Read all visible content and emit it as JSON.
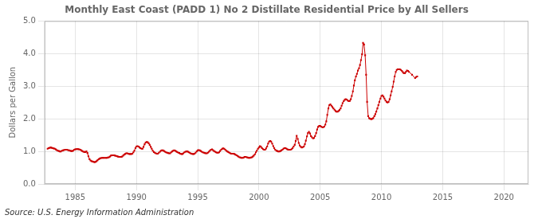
{
  "chart_data": {
    "type": "line",
    "title": "Monthly East Coast (PADD 1) No 2 Distillate Residential Price by All Sellers",
    "ylabel": "Dollars per Gallon",
    "annotations": [
      "Source: U.S. Energy Information Administration"
    ],
    "color": "#cc0000",
    "marker": "square",
    "line_style": "solid",
    "grid": true,
    "xlim": [
      1982.5,
      2022
    ],
    "ylim": [
      0.0,
      5.0
    ],
    "xticks": [
      1985,
      1990,
      1995,
      2000,
      2005,
      2010,
      2015,
      2020
    ],
    "yticks": [
      {
        "value": 0.0,
        "label": "0.0"
      },
      {
        "value": 1.0,
        "label": "1.0"
      },
      {
        "value": 2.0,
        "label": "2.0"
      },
      {
        "value": 3.0,
        "label": "3.0"
      },
      {
        "value": 4.0,
        "label": "4.0"
      },
      {
        "value": 5.0,
        "label": "5.0"
      }
    ],
    "x": [
      1982.75,
      1982.83,
      1982.92,
      1983.0,
      1983.08,
      1983.17,
      1983.25,
      1983.33,
      1983.42,
      1983.5,
      1983.58,
      1983.67,
      1983.75,
      1983.83,
      1983.92,
      1984.0,
      1984.08,
      1984.17,
      1984.25,
      1984.33,
      1984.42,
      1984.5,
      1984.58,
      1984.67,
      1984.75,
      1984.83,
      1984.92,
      1985.0,
      1985.08,
      1985.17,
      1985.25,
      1985.33,
      1985.42,
      1985.5,
      1985.58,
      1985.67,
      1985.75,
      1985.83,
      1985.92,
      1986.0,
      1986.08,
      1986.17,
      1986.25,
      1986.33,
      1986.42,
      1986.5,
      1986.58,
      1986.67,
      1986.75,
      1986.83,
      1986.92,
      1987.0,
      1987.08,
      1987.17,
      1987.25,
      1987.33,
      1987.42,
      1987.5,
      1987.58,
      1987.67,
      1987.75,
      1987.83,
      1987.92,
      1988.0,
      1988.08,
      1988.17,
      1988.25,
      1988.33,
      1988.42,
      1988.5,
      1988.58,
      1988.67,
      1988.75,
      1988.83,
      1988.92,
      1989.0,
      1989.08,
      1989.17,
      1989.25,
      1989.33,
      1989.42,
      1989.5,
      1989.58,
      1989.67,
      1989.75,
      1989.83,
      1989.92,
      1990.0,
      1990.08,
      1990.17,
      1990.25,
      1990.33,
      1990.42,
      1990.5,
      1990.58,
      1990.67,
      1990.75,
      1990.83,
      1990.92,
      1991.0,
      1991.08,
      1991.17,
      1991.25,
      1991.33,
      1991.42,
      1991.5,
      1991.58,
      1991.67,
      1991.75,
      1991.83,
      1991.92,
      1992.0,
      1992.08,
      1992.17,
      1992.25,
      1992.33,
      1992.42,
      1992.5,
      1992.58,
      1992.67,
      1992.75,
      1992.83,
      1992.92,
      1993.0,
      1993.08,
      1993.17,
      1993.25,
      1993.33,
      1993.42,
      1993.5,
      1993.58,
      1993.67,
      1993.75,
      1993.83,
      1993.92,
      1994.0,
      1994.08,
      1994.17,
      1994.25,
      1994.33,
      1994.42,
      1994.5,
      1994.58,
      1994.67,
      1994.75,
      1994.83,
      1994.92,
      1995.0,
      1995.08,
      1995.17,
      1995.25,
      1995.33,
      1995.42,
      1995.5,
      1995.58,
      1995.67,
      1995.75,
      1995.83,
      1995.92,
      1996.0,
      1996.08,
      1996.17,
      1996.25,
      1996.33,
      1996.42,
      1996.5,
      1996.58,
      1996.67,
      1996.75,
      1996.83,
      1996.92,
      1997.0,
      1997.08,
      1997.17,
      1997.25,
      1997.33,
      1997.42,
      1997.5,
      1997.58,
      1997.67,
      1997.75,
      1997.83,
      1997.92,
      1998.0,
      1998.08,
      1998.17,
      1998.25,
      1998.33,
      1998.42,
      1998.5,
      1998.58,
      1998.67,
      1998.75,
      1998.83,
      1998.92,
      1999.0,
      1999.08,
      1999.17,
      1999.25,
      1999.33,
      1999.42,
      1999.5,
      1999.58,
      1999.67,
      1999.75,
      1999.83,
      1999.92,
      2000.0,
      2000.08,
      2000.17,
      2000.25,
      2000.33,
      2000.42,
      2000.5,
      2000.58,
      2000.67,
      2000.75,
      2000.83,
      2000.92,
      2001.0,
      2001.08,
      2001.17,
      2001.25,
      2001.33,
      2001.42,
      2001.5,
      2001.58,
      2001.67,
      2001.75,
      2001.83,
      2001.92,
      2002.0,
      2002.08,
      2002.17,
      2002.25,
      2002.33,
      2002.42,
      2002.5,
      2002.58,
      2002.67,
      2002.75,
      2002.83,
      2002.92,
      2003.0,
      2003.08,
      2003.17,
      2003.25,
      2003.33,
      2003.42,
      2003.5,
      2003.58,
      2003.67,
      2003.75,
      2003.83,
      2003.92,
      2004.0,
      2004.08,
      2004.17,
      2004.25,
      2004.33,
      2004.42,
      2004.5,
      2004.58,
      2004.67,
      2004.75,
      2004.83,
      2004.92,
      2005.0,
      2005.08,
      2005.17,
      2005.25,
      2005.33,
      2005.42,
      2005.5,
      2005.58,
      2005.67,
      2005.75,
      2005.83,
      2005.92,
      2006.0,
      2006.08,
      2006.17,
      2006.25,
      2006.33,
      2006.42,
      2006.5,
      2006.58,
      2006.67,
      2006.75,
      2006.83,
      2006.92,
      2007.0,
      2007.08,
      2007.17,
      2007.25,
      2007.33,
      2007.42,
      2007.5,
      2007.58,
      2007.67,
      2007.75,
      2007.83,
      2007.92,
      2008.0,
      2008.08,
      2008.17,
      2008.25,
      2008.33,
      2008.42,
      2008.5,
      2008.58,
      2008.67,
      2008.75,
      2008.83,
      2008.92,
      2009.0,
      2009.08,
      2009.17,
      2009.25,
      2009.33,
      2009.42,
      2009.5,
      2009.58,
      2009.67,
      2009.75,
      2009.83,
      2009.92,
      2010.0,
      2010.08,
      2010.17,
      2010.25,
      2010.33,
      2010.42,
      2010.5,
      2010.58,
      2010.67,
      2010.75,
      2010.83,
      2010.92,
      2011.0,
      2011.08,
      2011.17,
      2011.25,
      2011.33,
      2011.42,
      2011.5,
      2011.58,
      2011.67,
      2011.75,
      2011.83,
      2011.92,
      2012.0,
      2012.08,
      2012.17,
      2012.25,
      2012.5,
      2012.75,
      2012.83,
      2012.92
    ],
    "values": [
      1.08,
      1.1,
      1.11,
      1.12,
      1.11,
      1.1,
      1.09,
      1.08,
      1.06,
      1.04,
      1.02,
      1.01,
      1.0,
      1.0,
      1.02,
      1.03,
      1.04,
      1.05,
      1.05,
      1.05,
      1.04,
      1.03,
      1.02,
      1.01,
      1.01,
      1.02,
      1.05,
      1.06,
      1.07,
      1.07,
      1.07,
      1.06,
      1.05,
      1.03,
      1.01,
      0.99,
      0.98,
      0.98,
      1.0,
      0.95,
      0.85,
      0.76,
      0.72,
      0.7,
      0.69,
      0.68,
      0.67,
      0.68,
      0.7,
      0.73,
      0.76,
      0.78,
      0.79,
      0.8,
      0.8,
      0.8,
      0.8,
      0.8,
      0.8,
      0.81,
      0.82,
      0.84,
      0.87,
      0.88,
      0.88,
      0.88,
      0.87,
      0.86,
      0.85,
      0.84,
      0.83,
      0.83,
      0.83,
      0.84,
      0.87,
      0.9,
      0.92,
      0.94,
      0.94,
      0.93,
      0.92,
      0.92,
      0.92,
      0.93,
      0.97,
      1.02,
      1.1,
      1.15,
      1.16,
      1.15,
      1.12,
      1.1,
      1.08,
      1.08,
      1.14,
      1.22,
      1.27,
      1.29,
      1.28,
      1.25,
      1.2,
      1.14,
      1.08,
      1.02,
      0.98,
      0.96,
      0.94,
      0.93,
      0.93,
      0.96,
      0.99,
      1.02,
      1.03,
      1.03,
      1.01,
      0.99,
      0.97,
      0.96,
      0.95,
      0.94,
      0.94,
      0.97,
      1.0,
      1.02,
      1.03,
      1.02,
      1.0,
      0.98,
      0.96,
      0.95,
      0.93,
      0.92,
      0.92,
      0.94,
      0.97,
      0.99,
      1.0,
      1.0,
      0.98,
      0.96,
      0.94,
      0.93,
      0.92,
      0.92,
      0.93,
      0.96,
      1.0,
      1.03,
      1.04,
      1.03,
      1.01,
      0.99,
      0.97,
      0.96,
      0.95,
      0.94,
      0.94,
      0.96,
      0.99,
      1.02,
      1.05,
      1.06,
      1.04,
      1.01,
      0.99,
      0.97,
      0.96,
      0.96,
      0.97,
      1.01,
      1.05,
      1.08,
      1.09,
      1.08,
      1.05,
      1.02,
      1.0,
      0.98,
      0.96,
      0.94,
      0.93,
      0.93,
      0.93,
      0.92,
      0.9,
      0.88,
      0.86,
      0.84,
      0.82,
      0.81,
      0.8,
      0.8,
      0.81,
      0.83,
      0.83,
      0.82,
      0.81,
      0.8,
      0.8,
      0.81,
      0.82,
      0.84,
      0.87,
      0.91,
      0.97,
      1.02,
      1.08,
      1.12,
      1.16,
      1.14,
      1.1,
      1.07,
      1.05,
      1.05,
      1.09,
      1.15,
      1.24,
      1.3,
      1.32,
      1.3,
      1.24,
      1.16,
      1.1,
      1.05,
      1.02,
      1.01,
      1.0,
      1.0,
      1.01,
      1.03,
      1.05,
      1.08,
      1.1,
      1.1,
      1.08,
      1.06,
      1.05,
      1.05,
      1.05,
      1.07,
      1.1,
      1.15,
      1.2,
      1.32,
      1.48,
      1.38,
      1.26,
      1.18,
      1.14,
      1.12,
      1.13,
      1.15,
      1.22,
      1.33,
      1.46,
      1.56,
      1.6,
      1.55,
      1.47,
      1.43,
      1.4,
      1.41,
      1.47,
      1.56,
      1.67,
      1.75,
      1.78,
      1.78,
      1.76,
      1.74,
      1.74,
      1.76,
      1.82,
      1.92,
      2.12,
      2.32,
      2.42,
      2.44,
      2.4,
      2.36,
      2.32,
      2.28,
      2.24,
      2.22,
      2.22,
      2.24,
      2.27,
      2.32,
      2.4,
      2.48,
      2.54,
      2.58,
      2.6,
      2.59,
      2.56,
      2.54,
      2.55,
      2.6,
      2.7,
      2.84,
      3.02,
      3.18,
      3.3,
      3.38,
      3.48,
      3.55,
      3.65,
      3.8,
      3.98,
      4.33,
      4.28,
      3.95,
      3.35,
      2.52,
      2.08,
      2.02,
      2.0,
      1.99,
      2.0,
      2.02,
      2.08,
      2.14,
      2.22,
      2.32,
      2.42,
      2.52,
      2.62,
      2.7,
      2.72,
      2.68,
      2.62,
      2.56,
      2.52,
      2.5,
      2.52,
      2.6,
      2.72,
      2.84,
      2.98,
      3.14,
      3.3,
      3.44,
      3.5,
      3.52,
      3.52,
      3.52,
      3.5,
      3.47,
      3.43,
      3.4,
      3.4,
      3.44,
      3.48,
      3.47,
      3.44,
      3.35,
      3.25,
      3.28,
      3.3
    ]
  }
}
